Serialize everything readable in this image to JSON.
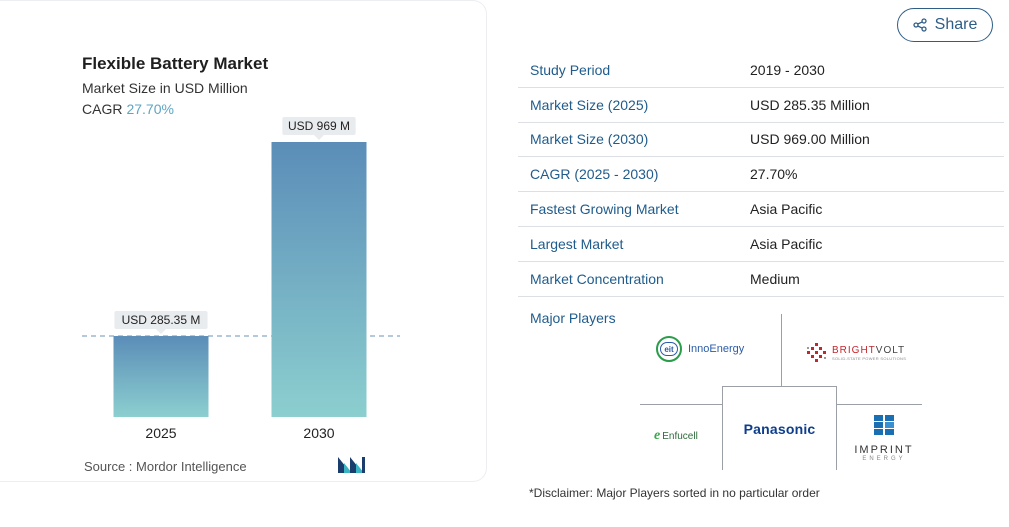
{
  "share": {
    "label": "Share",
    "icon": "share-icon"
  },
  "chart_data": {
    "type": "bar",
    "title": "Flexible Battery Market",
    "subtitle": "Market Size in USD Million",
    "cagr_label": "CAGR",
    "cagr_value": "27.70%",
    "categories": [
      "2025",
      "2030"
    ],
    "values": [
      285.35,
      969
    ],
    "data_labels": [
      "USD 285.35 M",
      "USD 969 M"
    ],
    "ylim": [
      0,
      969
    ],
    "baseline_dashed_at": 285.35,
    "grid": false,
    "colors": {
      "bar_top": "#5b8db8",
      "bar_bottom": "#8ccfcf",
      "label_bg": "#e9ecef",
      "cagr": "#5ea5c4",
      "dash": "#6b93b8"
    }
  },
  "source": {
    "label": "Source :",
    "name": "Mordor Intelligence",
    "logo_icon": "mordor-intelligence-logo-icon"
  },
  "stats": [
    {
      "label": "Study Period",
      "value": "2019 - 2030"
    },
    {
      "label": "Market Size (2025)",
      "value": "USD 285.35 Million"
    },
    {
      "label": "Market Size (2030)",
      "value": "USD 969.00 Million"
    },
    {
      "label": "CAGR (2025 - 2030)",
      "value": "27.70%"
    },
    {
      "label": "Fastest Growing Market",
      "value": "Asia Pacific"
    },
    {
      "label": "Largest Market",
      "value": "Asia Pacific"
    },
    {
      "label": "Market Concentration",
      "value": "Medium"
    }
  ],
  "major_players": {
    "label": "Major Players",
    "innoenergy": {
      "badge": "eit",
      "name": "InnoEnergy"
    },
    "brightvolt": {
      "bright": "BRIGHT",
      "volt": "VOLT",
      "tagline": "SOLID-STATE POWER SOLUTIONS"
    },
    "panasonic": "Panasonic",
    "enfucell": {
      "e": "e",
      "name": "Enfucell"
    },
    "imprint": {
      "name": "IMPRINT",
      "sub": "ENERGY"
    }
  },
  "disclaimer": "*Disclaimer: Major Players sorted in no particular order",
  "colors": {
    "accent": "#1f5c8c",
    "share_border": "#2e5d86"
  }
}
